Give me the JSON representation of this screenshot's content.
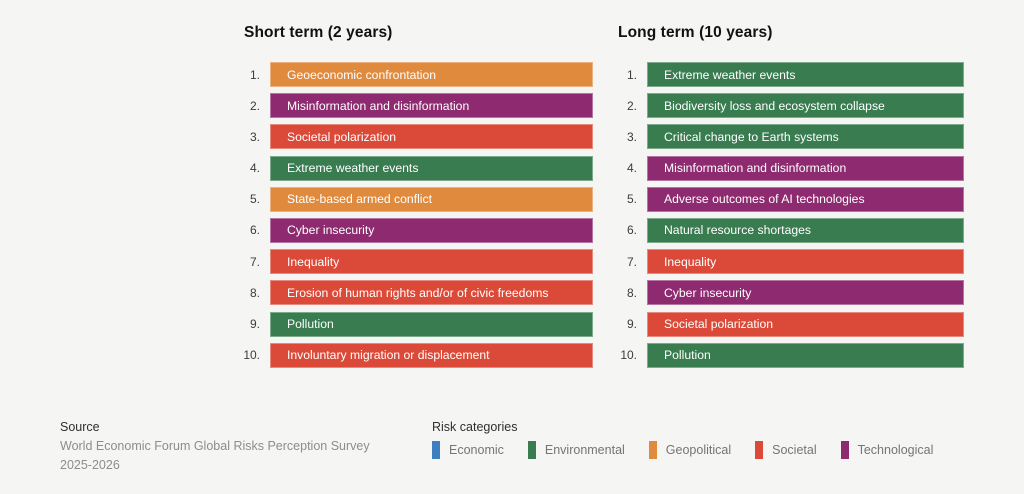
{
  "page": {
    "background": "#f5f5f3"
  },
  "chart_data": {
    "type": "table",
    "layout": "two ranked lists of color-coded bars with category legend",
    "columns": [
      {
        "title": "Short term (2 years)",
        "items": [
          {
            "rank": "1.",
            "label": "Geoeconomic confrontation",
            "category": "Geopolitical"
          },
          {
            "rank": "2.",
            "label": "Misinformation and disinformation",
            "category": "Technological"
          },
          {
            "rank": "3.",
            "label": "Societal polarization",
            "category": "Societal"
          },
          {
            "rank": "4.",
            "label": "Extreme weather events",
            "category": "Environmental"
          },
          {
            "rank": "5.",
            "label": "State-based armed conflict",
            "category": "Geopolitical"
          },
          {
            "rank": "6.",
            "label": "Cyber insecurity",
            "category": "Technological"
          },
          {
            "rank": "7.",
            "label": "Inequality",
            "category": "Societal"
          },
          {
            "rank": "8.",
            "label": "Erosion of human rights and/or of civic freedoms",
            "category": "Societal"
          },
          {
            "rank": "9.",
            "label": "Pollution",
            "category": "Environmental"
          },
          {
            "rank": "10.",
            "label": "Involuntary migration or displacement",
            "category": "Societal"
          }
        ]
      },
      {
        "title": "Long term (10 years)",
        "items": [
          {
            "rank": "1.",
            "label": "Extreme weather events",
            "category": "Environmental"
          },
          {
            "rank": "2.",
            "label": "Biodiversity loss and ecosystem collapse",
            "category": "Environmental"
          },
          {
            "rank": "3.",
            "label": "Critical change to Earth systems",
            "category": "Environmental"
          },
          {
            "rank": "4.",
            "label": "Misinformation and disinformation",
            "category": "Technological"
          },
          {
            "rank": "5.",
            "label": "Adverse outcomes of AI technologies",
            "category": "Technological"
          },
          {
            "rank": "6.",
            "label": "Natural resource shortages",
            "category": "Environmental"
          },
          {
            "rank": "7.",
            "label": "Inequality",
            "category": "Societal"
          },
          {
            "rank": "8.",
            "label": "Cyber insecurity",
            "category": "Technological"
          },
          {
            "rank": "9.",
            "label": "Societal polarization",
            "category": "Societal"
          },
          {
            "rank": "10.",
            "label": "Pollution",
            "category": "Environmental"
          }
        ]
      }
    ],
    "categories": [
      {
        "name": "Economic",
        "color": "#3c7ec0"
      },
      {
        "name": "Environmental",
        "color": "#387c50"
      },
      {
        "name": "Geopolitical",
        "color": "#df8a3d"
      },
      {
        "name": "Societal",
        "color": "#db4a38"
      },
      {
        "name": "Technological",
        "color": "#8e2a6f"
      }
    ],
    "legend_position": "bottom-right"
  },
  "footer": {
    "source_label": "Source",
    "source_lines": [
      "World Economic Forum Global Risks Perception Survey",
      "2025-2026"
    ],
    "legend_title": "Risk categories"
  }
}
